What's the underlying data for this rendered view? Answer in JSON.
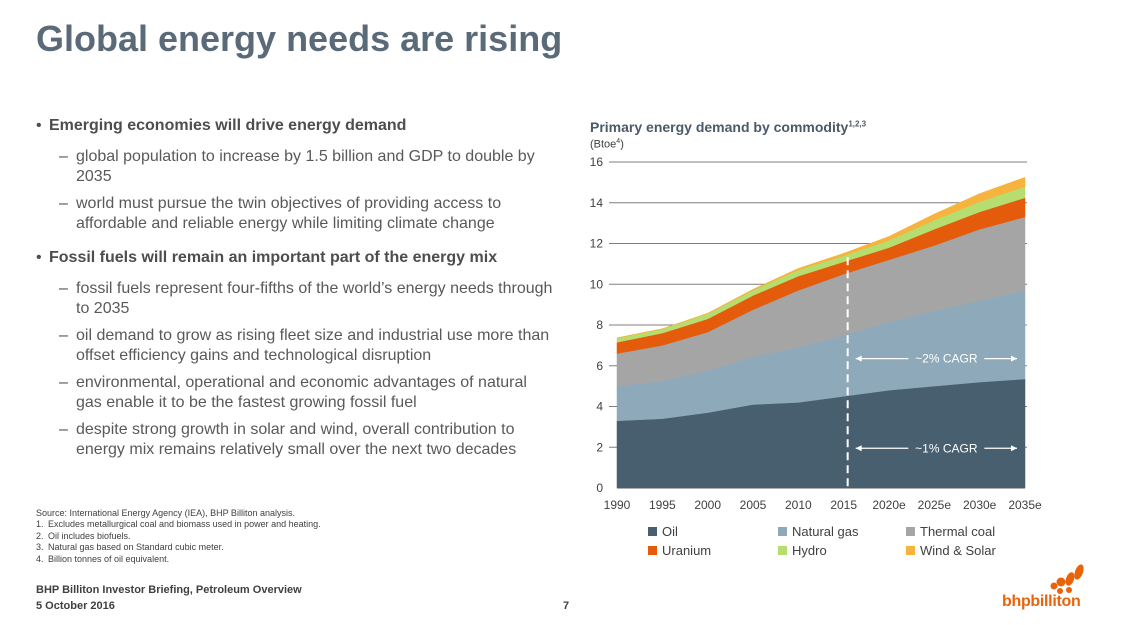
{
  "page": {
    "title": "Global energy needs are rising",
    "bullets": [
      {
        "text": "Emerging economies will drive energy demand",
        "subs": [
          "global population to increase by 1.5 billion and GDP to double by 2035",
          "world must pursue the twin objectives of providing access to affordable and reliable energy while limiting climate change"
        ]
      },
      {
        "text": "Fossil fuels will remain an important part of the energy mix",
        "subs": [
          "fossil fuels represent four-fifths of the world’s energy needs through to 2035",
          "oil demand to grow as rising fleet size and industrial use more than offset efficiency gains and technological disruption",
          "environmental, operational and economic advantages of natural gas enable it to be the fastest growing fossil fuel",
          "despite strong growth in solar and wind, overall contribution to energy mix remains relatively small over the next two decades"
        ]
      }
    ],
    "source": "Source:   International Energy Agency (IEA), BHP Billiton analysis.",
    "footnotes": [
      {
        "num": "1.",
        "text": "Excludes metallurgical coal and biomass used in power and heating."
      },
      {
        "num": "2.",
        "text": "Oil includes biofuels."
      },
      {
        "num": "3.",
        "text": "Natural gas based on Standard cubic meter."
      },
      {
        "num": "4.",
        "text": "Billion tonnes of oil equivalent."
      }
    ],
    "footer_line1": "BHP Billiton Investor Briefing, Petroleum Overview",
    "footer_line2": "5 October 2016",
    "page_number": "7",
    "logo_text": "bhpbilliton",
    "brand_color": "#e8640c"
  },
  "chart_data": {
    "type": "area",
    "title": "Primary energy demand by commodity",
    "title_sup": "1,2,3",
    "unit_label": "(Btoe",
    "unit_sup": "4",
    "unit_close": ")",
    "categories": [
      "1990",
      "1995",
      "2000",
      "2005",
      "2010",
      "2015",
      "2020e",
      "2025e",
      "2030e",
      "2035e"
    ],
    "stacked": true,
    "ylim": [
      0,
      16
    ],
    "yticks": [
      0,
      2,
      4,
      6,
      8,
      10,
      12,
      14,
      16
    ],
    "grid": true,
    "series": [
      {
        "name": "Oil",
        "color": "#485f6f",
        "values": [
          3.3,
          3.4,
          3.7,
          4.1,
          4.2,
          4.5,
          4.8,
          5.0,
          5.2,
          5.35
        ]
      },
      {
        "name": "Natural gas",
        "color": "#8ea9b9",
        "values": [
          1.7,
          1.85,
          2.05,
          2.35,
          2.7,
          3.0,
          3.35,
          3.7,
          4.0,
          4.35
        ]
      },
      {
        "name": "Thermal coal",
        "color": "#a5a5a5",
        "values": [
          1.6,
          1.75,
          1.9,
          2.3,
          2.8,
          3.0,
          3.05,
          3.2,
          3.5,
          3.6
        ]
      },
      {
        "name": "Uranium",
        "color": "#e55b0c",
        "values": [
          0.55,
          0.6,
          0.65,
          0.7,
          0.7,
          0.6,
          0.6,
          0.8,
          0.85,
          0.95
        ]
      },
      {
        "name": "Hydro",
        "color": "#b5dd6f",
        "values": [
          0.2,
          0.2,
          0.25,
          0.25,
          0.3,
          0.3,
          0.35,
          0.45,
          0.5,
          0.55
        ]
      },
      {
        "name": "Wind & Solar",
        "color": "#f6b33d",
        "values": [
          0.02,
          0.02,
          0.03,
          0.05,
          0.08,
          0.12,
          0.2,
          0.3,
          0.4,
          0.45
        ]
      }
    ],
    "annotations": [
      {
        "text": "~2% CAGR",
        "y": 6.35
      },
      {
        "text": "~1% CAGR",
        "y": 1.95
      }
    ],
    "divider_at": "2015"
  }
}
